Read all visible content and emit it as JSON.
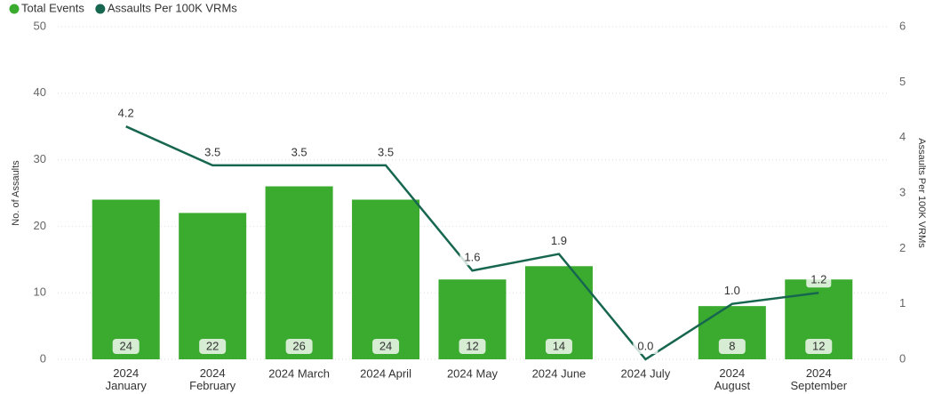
{
  "chart_data": {
    "type": "bar-line",
    "categories": [
      "2024 January",
      "2024 February",
      "2024 March",
      "2024 April",
      "2024 May",
      "2024 June",
      "2024 July",
      "2024 August",
      "2024 September"
    ],
    "series": [
      {
        "name": "Total Events",
        "type": "bar",
        "color": "#3bab30",
        "values": [
          24,
          22,
          26,
          24,
          12,
          14,
          null,
          8,
          12
        ]
      },
      {
        "name": "Assaults Per 100K VRMs",
        "type": "line",
        "axis": "y2",
        "color": "#17664f",
        "values": [
          4.2,
          3.5,
          3.5,
          3.5,
          1.6,
          1.9,
          0.0,
          1.0,
          1.2
        ],
        "value_labels": [
          "4.2",
          "3.5",
          "3.5",
          "3.5",
          "1.6",
          "1.9",
          "0.0",
          "1.0",
          "1.2"
        ]
      }
    ],
    "y_label": "No. of Assaults",
    "y2_label": "Assaults Per 100K VRMs",
    "ylim": [
      0,
      50
    ],
    "yticks": [
      0,
      10,
      20,
      30,
      40,
      50
    ],
    "y2lim": [
      0,
      6
    ],
    "y2ticks": [
      0,
      1,
      2,
      3,
      4,
      5,
      6
    ],
    "grid": true,
    "legend": "top-left"
  }
}
